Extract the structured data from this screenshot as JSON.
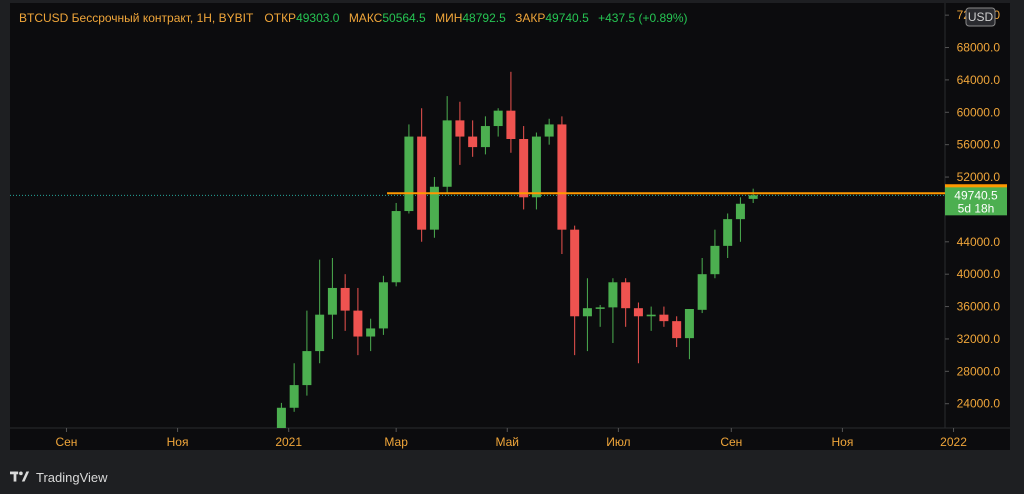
{
  "legend": {
    "symbol": "BTCUSD Бессрочный контракт, 1H, BYBIT",
    "open_label": "ОТКР",
    "open_value": "49303.0",
    "high_label": "МАКС",
    "high_value": "50564.5",
    "low_label": "МИН",
    "low_value": "48792.5",
    "close_label": "ЗАКР",
    "close_value": "49740.5",
    "change": "+437.5 (+0.89%)"
  },
  "currency_badge": "USD",
  "price_marker": {
    "level_label": "50000.0",
    "price_label": "49740.5",
    "countdown_label": "5d 18h"
  },
  "footer": {
    "brand": "TradingView"
  },
  "colors": {
    "background": "#1e1f22",
    "plot_bg": "#0c0c0e",
    "up": "#4caf50",
    "down": "#ef5350",
    "level_line": "#ff9800",
    "axis_text": "#f0a63a",
    "badge_green": "#4caf50"
  },
  "chart_data": {
    "type": "candlestick",
    "y_axis": {
      "ticks": [
        "24000.0",
        "28000.0",
        "32000.0",
        "36000.0",
        "40000.0",
        "44000.0",
        "48000.0",
        "52000.0",
        "56000.0",
        "60000.0",
        "64000.0",
        "68000.0",
        "72000.0"
      ],
      "range": [
        21000,
        73500
      ]
    },
    "x_axis": {
      "ticks": [
        "Сен",
        "Ноя",
        "2021",
        "Мар",
        "Май",
        "Июл",
        "Сен",
        "Ноя",
        "2022"
      ]
    },
    "horizontal_level": 50000,
    "current_price": 49740.5,
    "candles": [
      {
        "date": "2020-12-28",
        "open": 21000,
        "high": 24100,
        "low": 21000,
        "close": 23500
      },
      {
        "date": "2021-01-04",
        "open": 23500,
        "high": 29000,
        "low": 23000,
        "close": 26300
      },
      {
        "date": "2021-01-11",
        "open": 26300,
        "high": 35500,
        "low": 25000,
        "close": 30500
      },
      {
        "date": "2021-01-18",
        "open": 30500,
        "high": 41800,
        "low": 29000,
        "close": 35000
      },
      {
        "date": "2021-01-25",
        "open": 35000,
        "high": 42000,
        "low": 32000,
        "close": 38300
      },
      {
        "date": "2021-02-01",
        "open": 38300,
        "high": 40000,
        "low": 33000,
        "close": 35500
      },
      {
        "date": "2021-02-08",
        "open": 35500,
        "high": 38300,
        "low": 30000,
        "close": 32300
      },
      {
        "date": "2021-02-15",
        "open": 32300,
        "high": 34500,
        "low": 30500,
        "close": 33300
      },
      {
        "date": "2021-02-22",
        "open": 33300,
        "high": 39800,
        "low": 32500,
        "close": 39000
      },
      {
        "date": "2021-03-01",
        "open": 39000,
        "high": 48800,
        "low": 38500,
        "close": 47800
      },
      {
        "date": "2021-03-08",
        "open": 47800,
        "high": 58500,
        "low": 47500,
        "close": 57000
      },
      {
        "date": "2021-03-15",
        "open": 57000,
        "high": 60500,
        "low": 44000,
        "close": 45500
      },
      {
        "date": "2021-03-22",
        "open": 45500,
        "high": 52000,
        "low": 44500,
        "close": 50800
      },
      {
        "date": "2021-03-29",
        "open": 50800,
        "high": 62000,
        "low": 50000,
        "close": 59000
      },
      {
        "date": "2021-04-05",
        "open": 59000,
        "high": 61300,
        "low": 53500,
        "close": 57000
      },
      {
        "date": "2021-04-12",
        "open": 57000,
        "high": 59000,
        "low": 54500,
        "close": 55700
      },
      {
        "date": "2021-04-19",
        "open": 55700,
        "high": 59500,
        "low": 54800,
        "close": 58300
      },
      {
        "date": "2021-04-26",
        "open": 58300,
        "high": 60500,
        "low": 57000,
        "close": 60200
      },
      {
        "date": "2021-05-03",
        "open": 60200,
        "high": 65000,
        "low": 55000,
        "close": 56700
      },
      {
        "date": "2021-05-10",
        "open": 56700,
        "high": 58300,
        "low": 48000,
        "close": 49500
      },
      {
        "date": "2021-05-17",
        "open": 49500,
        "high": 57500,
        "low": 48000,
        "close": 57000
      },
      {
        "date": "2021-05-24",
        "open": 57000,
        "high": 59200,
        "low": 56000,
        "close": 58500
      },
      {
        "date": "2021-05-31",
        "open": 58500,
        "high": 59500,
        "low": 42500,
        "close": 45500
      },
      {
        "date": "2021-06-07",
        "open": 45500,
        "high": 46000,
        "low": 30000,
        "close": 34800
      },
      {
        "date": "2021-06-14",
        "open": 34800,
        "high": 39500,
        "low": 30500,
        "close": 35800
      },
      {
        "date": "2021-06-21",
        "open": 35800,
        "high": 36200,
        "low": 33500,
        "close": 35900
      },
      {
        "date": "2021-06-28",
        "open": 35900,
        "high": 39500,
        "low": 31500,
        "close": 39000
      },
      {
        "date": "2021-07-05",
        "open": 39000,
        "high": 39500,
        "low": 33500,
        "close": 35800
      },
      {
        "date": "2021-07-12",
        "open": 35800,
        "high": 36500,
        "low": 29000,
        "close": 34800
      },
      {
        "date": "2021-07-19",
        "open": 34800,
        "high": 36000,
        "low": 33000,
        "close": 35000
      },
      {
        "date": "2021-07-26",
        "open": 35000,
        "high": 36000,
        "low": 33500,
        "close": 34200
      },
      {
        "date": "2021-08-02",
        "open": 34200,
        "high": 34800,
        "low": 31000,
        "close": 32100
      },
      {
        "date": "2021-08-09",
        "open": 32100,
        "high": 35700,
        "low": 29500,
        "close": 35700
      },
      {
        "date": "2021-08-16",
        "open": 35600,
        "high": 42000,
        "low": 35200,
        "close": 40000
      },
      {
        "date": "2021-08-23",
        "open": 40000,
        "high": 45500,
        "low": 39500,
        "close": 43500
      },
      {
        "date": "2021-08-30",
        "open": 43500,
        "high": 47500,
        "low": 42000,
        "close": 46800
      },
      {
        "date": "2021-09-06",
        "open": 46800,
        "high": 49500,
        "low": 44000,
        "close": 48700
      },
      {
        "date": "2021-09-13",
        "open": 49303,
        "high": 50564.5,
        "low": 48792.5,
        "close": 49740.5
      }
    ]
  }
}
